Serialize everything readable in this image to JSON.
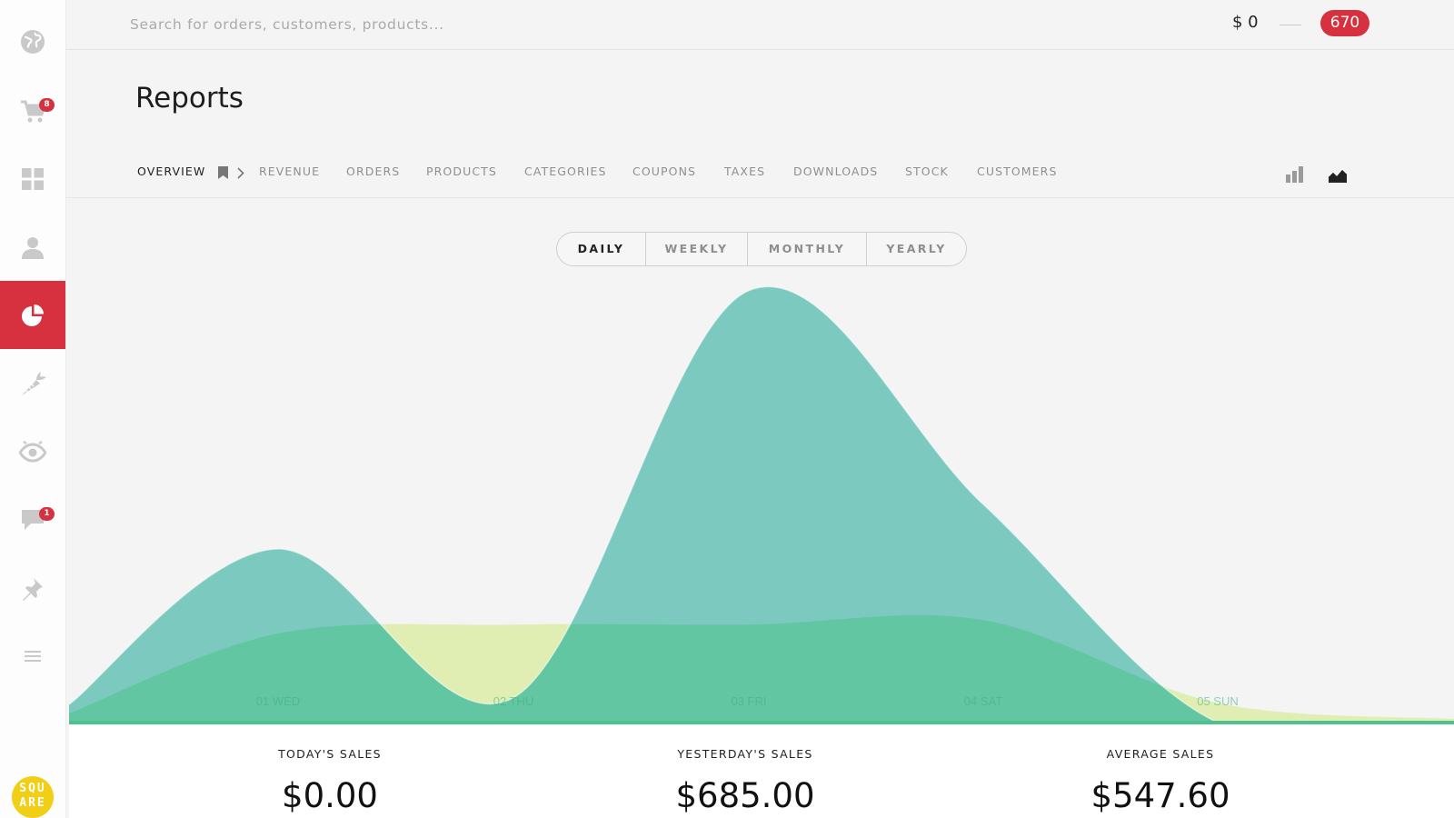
{
  "sidebar": {
    "items": [
      {
        "icon": "globe-icon",
        "name": "sidebar-item-globe"
      },
      {
        "icon": "cart-icon",
        "name": "sidebar-item-cart",
        "badge": "8"
      },
      {
        "icon": "grid-icon",
        "name": "sidebar-item-dashboard"
      },
      {
        "icon": "user-icon",
        "name": "sidebar-item-customers"
      },
      {
        "icon": "pie-chart-icon",
        "name": "sidebar-item-reports",
        "active": true
      },
      {
        "icon": "carrot-icon",
        "name": "sidebar-item-products"
      },
      {
        "icon": "eye-icon",
        "name": "sidebar-item-views"
      },
      {
        "icon": "chat-icon",
        "name": "sidebar-item-messages",
        "badge": "1"
      },
      {
        "icon": "pin-icon",
        "name": "sidebar-item-pins"
      },
      {
        "icon": "menu-icon",
        "name": "sidebar-item-menu"
      }
    ],
    "logo_line1": "SQU",
    "logo_line2": "ARE"
  },
  "topbar": {
    "search_placeholder": "Search for orders, customers, products...",
    "balance": "$ 0",
    "count": "670"
  },
  "page": {
    "title": "Reports"
  },
  "tabs": [
    {
      "label": "OVERVIEW",
      "active": true
    },
    {
      "label": "REVENUE"
    },
    {
      "label": "ORDERS"
    },
    {
      "label": "PRODUCTS"
    },
    {
      "label": "CATEGORIES"
    },
    {
      "label": "COUPONS"
    },
    {
      "label": "TAXES"
    },
    {
      "label": "DOWNLOADS"
    },
    {
      "label": "STOCK"
    },
    {
      "label": "CUSTOMERS"
    }
  ],
  "period": {
    "options": [
      "DAILY",
      "WEEKLY",
      "MONTHLY",
      "YEARLY"
    ],
    "selected": "DAILY"
  },
  "colors": {
    "accent": "#d7303f",
    "series_teal": "#7ccabf",
    "series_lime": "#e0eeb3",
    "overlap": "#62c6a2",
    "baseline": "#4ec28e"
  },
  "chart_data": {
    "type": "area",
    "categories": [
      "01 WED",
      "02 THU",
      "03 FRI",
      "04 SAT",
      "05 SUN"
    ],
    "series": [
      {
        "values": [
          195,
          28,
          485,
          245,
          0
        ]
      },
      {
        "values": [
          100,
          110,
          110,
          115,
          22
        ]
      }
    ],
    "ylim": [
      0,
      500
    ],
    "grid": false
  },
  "stats": [
    {
      "label": "TODAY'S SALES",
      "value": "$0.00"
    },
    {
      "label": "YESTERDAY'S SALES",
      "value": "$685.00"
    },
    {
      "label": "AVERAGE SALES",
      "value": "$547.60"
    }
  ]
}
